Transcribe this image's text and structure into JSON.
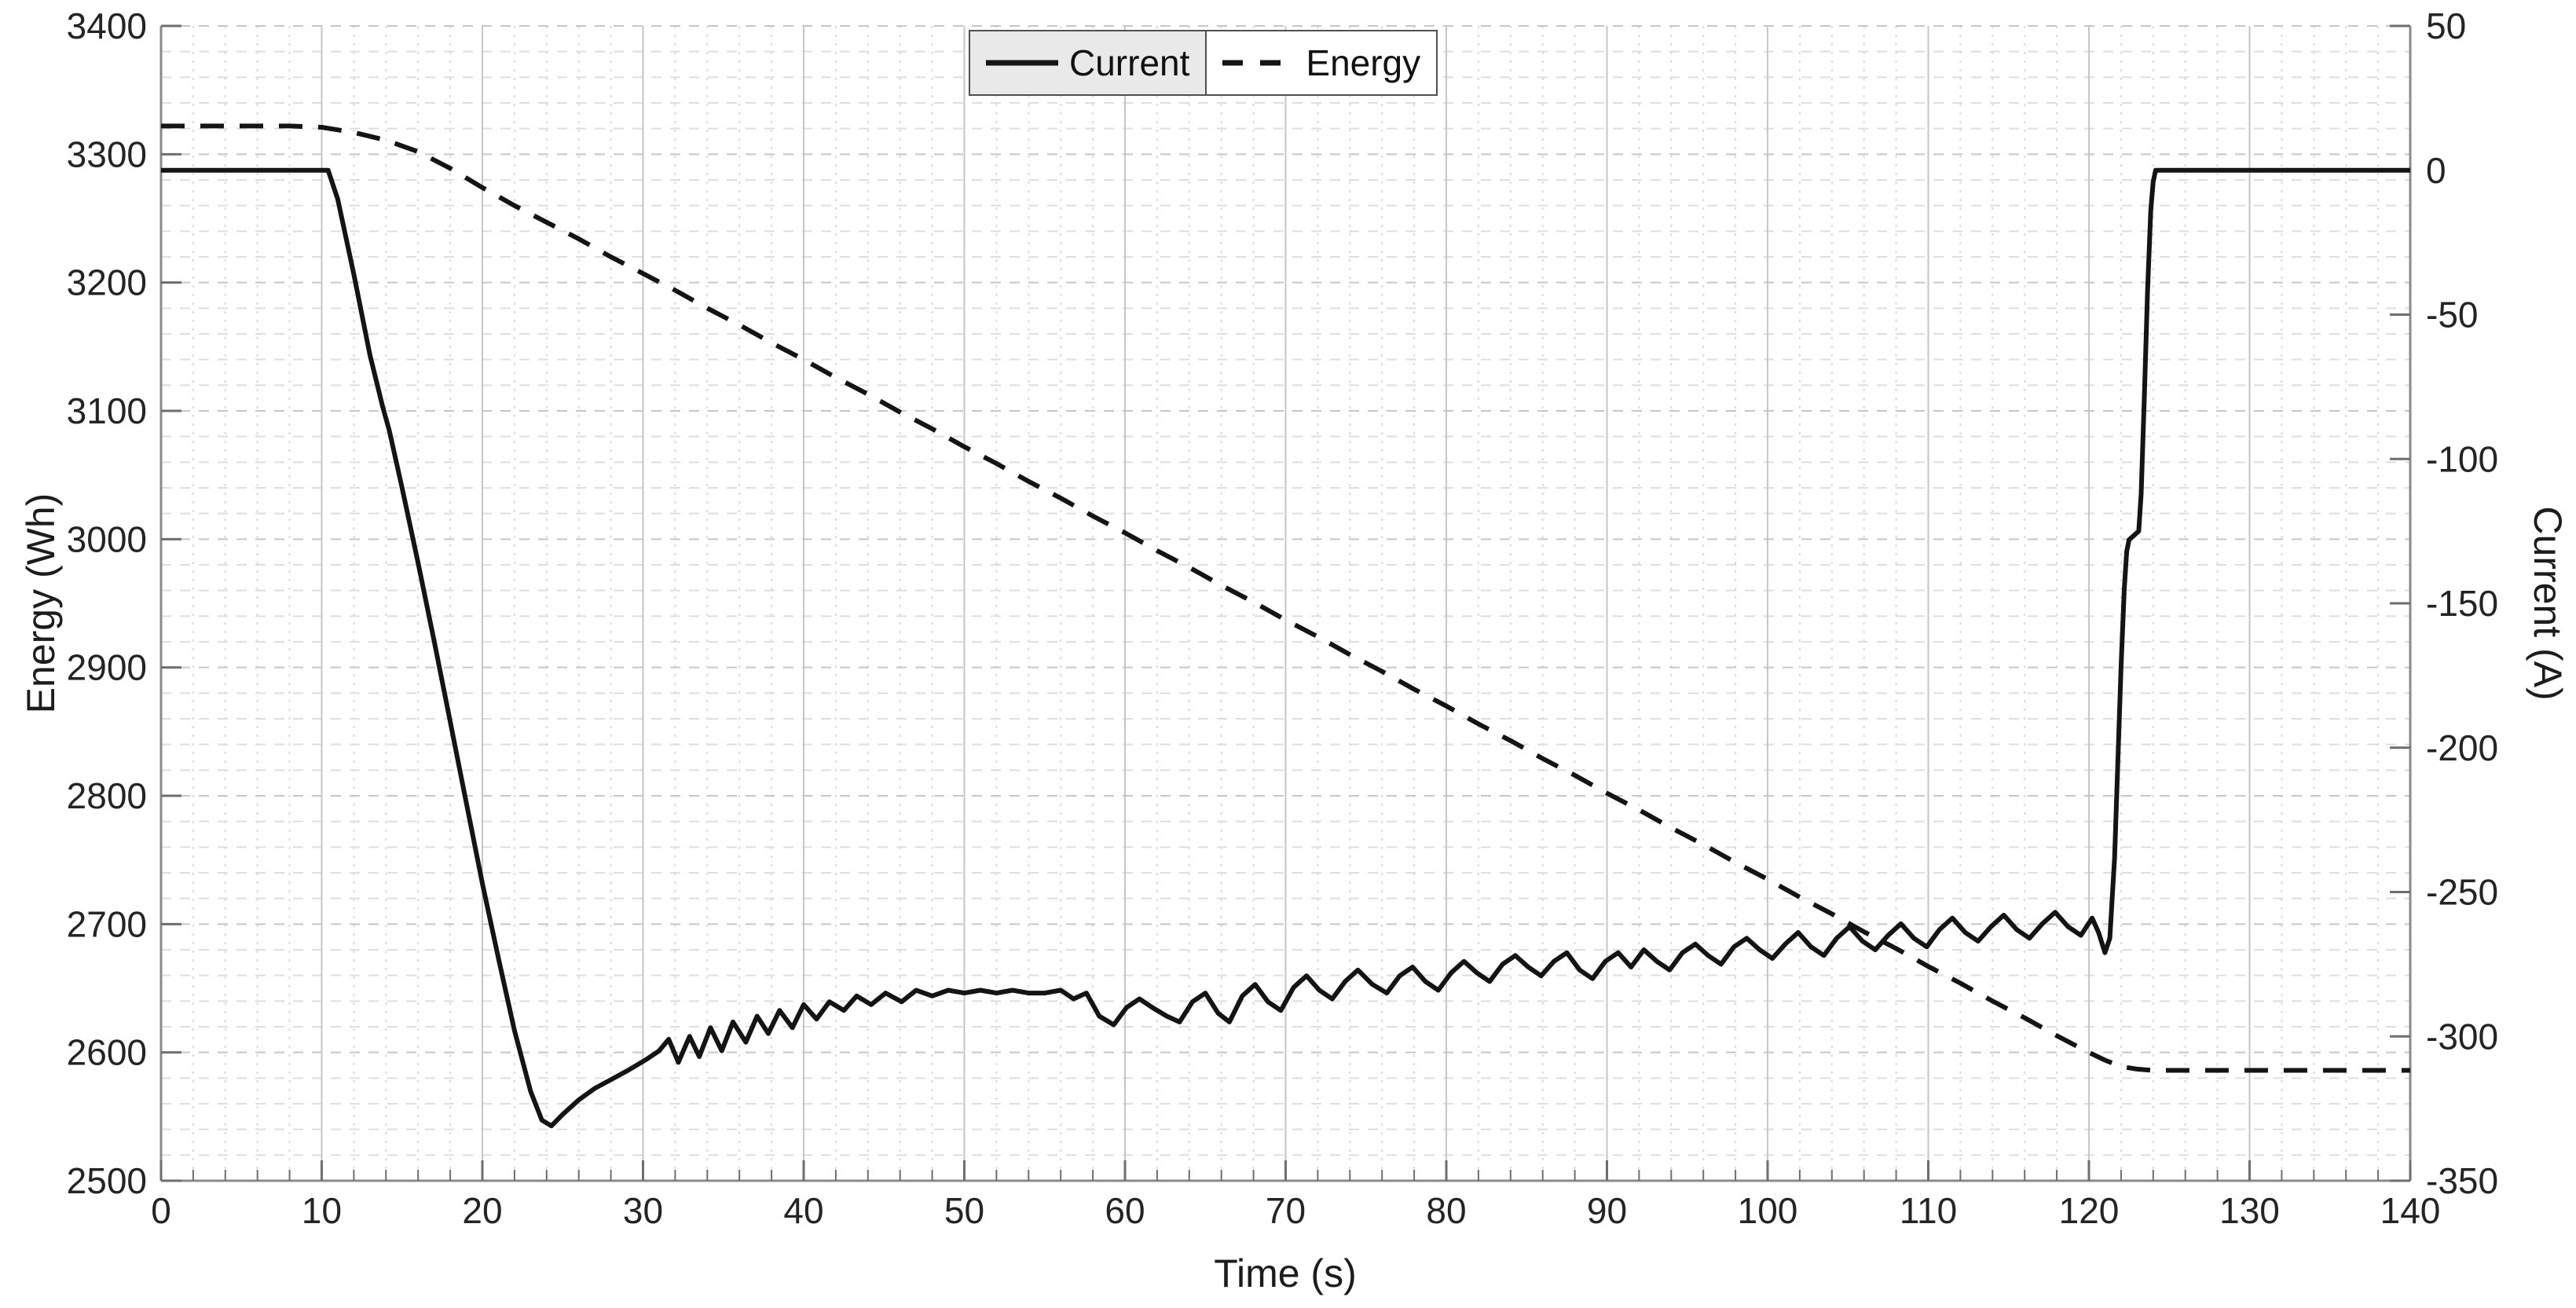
{
  "chart_data": {
    "type": "line",
    "title": "",
    "x_axis": {
      "label": "Time (s)",
      "min": 0,
      "max": 140,
      "major_tick_step": 10,
      "minor_step": 2,
      "ticks": [
        0,
        10,
        20,
        30,
        40,
        50,
        60,
        70,
        80,
        90,
        100,
        110,
        120,
        130,
        140
      ]
    },
    "y_left": {
      "label": "Energy (Wh)",
      "min": 2500,
      "max": 3400,
      "major_tick_step": 100,
      "minor_step": 20,
      "ticks": [
        2500,
        2600,
        2700,
        2800,
        2900,
        3000,
        3100,
        3200,
        3300,
        3400
      ]
    },
    "y_right": {
      "label": "Current (A)",
      "min": -350,
      "max": 50,
      "major_tick_step": 50,
      "ticks": [
        -350,
        -300,
        -250,
        -200,
        -150,
        -100,
        -50,
        0,
        50
      ]
    },
    "grid": true,
    "legend": {
      "position": "top-center",
      "entries": [
        {
          "label": "Current",
          "line_style": "solid"
        },
        {
          "label": "Energy",
          "line_style": "dashed"
        }
      ]
    },
    "colors": {
      "background": "#ffffff",
      "line": "#141414",
      "axis_line": "#8a8a8a",
      "tick": "#6e6e6e",
      "tick_label": "#242424",
      "grid_minor_v": "#dadada",
      "grid_minor_h": "#dedede",
      "grid_major": "#c6c6c6",
      "legend_border": "#4f4f4f",
      "legend_bg_current": "#e9e9e9",
      "legend_bg_energy": "#ffffff"
    },
    "series": [
      {
        "name": "Current",
        "axis": "right",
        "line_style": "solid",
        "unit": "A",
        "color": "#141414",
        "points": [
          [
            0,
            0
          ],
          [
            2,
            0
          ],
          [
            4,
            0
          ],
          [
            6,
            0
          ],
          [
            8,
            0
          ],
          [
            10,
            0
          ],
          [
            10.4,
            0
          ],
          [
            11,
            -10
          ],
          [
            12,
            -36
          ],
          [
            13,
            -64
          ],
          [
            13.8,
            -82
          ],
          [
            14.2,
            -90
          ],
          [
            15,
            -110
          ],
          [
            16,
            -136
          ],
          [
            17,
            -163
          ],
          [
            18,
            -191
          ],
          [
            19,
            -219
          ],
          [
            20,
            -247
          ],
          [
            21,
            -273
          ],
          [
            22,
            -298
          ],
          [
            23,
            -319
          ],
          [
            23.7,
            -329
          ],
          [
            24.3,
            -331
          ],
          [
            25,
            -327
          ],
          [
            26,
            -322
          ],
          [
            27,
            -318
          ],
          [
            28,
            -315
          ],
          [
            29,
            -312
          ],
          [
            30.2,
            -308
          ],
          [
            31,
            -305
          ],
          [
            31.6,
            -301
          ],
          [
            32.2,
            -309
          ],
          [
            32.9,
            -300
          ],
          [
            33.5,
            -307
          ],
          [
            34.2,
            -297
          ],
          [
            34.9,
            -305
          ],
          [
            35.6,
            -295
          ],
          [
            36.4,
            -302
          ],
          [
            37.1,
            -293
          ],
          [
            37.8,
            -299
          ],
          [
            38.5,
            -291
          ],
          [
            39.3,
            -297
          ],
          [
            40,
            -289
          ],
          [
            40.8,
            -294
          ],
          [
            41.6,
            -288
          ],
          [
            42.5,
            -291
          ],
          [
            43.3,
            -286
          ],
          [
            44.2,
            -289
          ],
          [
            45.1,
            -285
          ],
          [
            46.1,
            -288
          ],
          [
            47,
            -284
          ],
          [
            48,
            -286
          ],
          [
            49,
            -284
          ],
          [
            50,
            -285
          ],
          [
            51,
            -284
          ],
          [
            52,
            -285
          ],
          [
            53,
            -284
          ],
          [
            54,
            -285
          ],
          [
            55,
            -285
          ],
          [
            56,
            -284
          ],
          [
            56.8,
            -287
          ],
          [
            57.6,
            -285
          ],
          [
            58.4,
            -293
          ],
          [
            59.3,
            -296
          ],
          [
            60.1,
            -290
          ],
          [
            60.9,
            -287
          ],
          [
            61.7,
            -290
          ],
          [
            62.6,
            -293
          ],
          [
            63.4,
            -295
          ],
          [
            64.2,
            -288
          ],
          [
            65,
            -285
          ],
          [
            65.8,
            -292
          ],
          [
            66.5,
            -295
          ],
          [
            67.3,
            -286
          ],
          [
            68.1,
            -282
          ],
          [
            68.9,
            -288
          ],
          [
            69.7,
            -291
          ],
          [
            70.5,
            -283
          ],
          [
            71.3,
            -279
          ],
          [
            72.1,
            -284
          ],
          [
            72.9,
            -287
          ],
          [
            73.7,
            -281
          ],
          [
            74.5,
            -277
          ],
          [
            75.4,
            -282
          ],
          [
            76.3,
            -285
          ],
          [
            77.1,
            -279
          ],
          [
            77.9,
            -276
          ],
          [
            78.7,
            -281
          ],
          [
            79.5,
            -284
          ],
          [
            80.3,
            -278
          ],
          [
            81.1,
            -274
          ],
          [
            81.9,
            -278
          ],
          [
            82.7,
            -281
          ],
          [
            83.5,
            -275
          ],
          [
            84.3,
            -272
          ],
          [
            85.1,
            -276
          ],
          [
            85.9,
            -279
          ],
          [
            86.7,
            -274
          ],
          [
            87.5,
            -271
          ],
          [
            88.3,
            -277
          ],
          [
            89.1,
            -280
          ],
          [
            89.9,
            -274
          ],
          [
            90.7,
            -271
          ],
          [
            91.5,
            -276
          ],
          [
            92.3,
            -270
          ],
          [
            93.1,
            -274
          ],
          [
            93.9,
            -277
          ],
          [
            94.7,
            -271
          ],
          [
            95.5,
            -268
          ],
          [
            96.3,
            -272
          ],
          [
            97.1,
            -275
          ],
          [
            97.9,
            -269
          ],
          [
            98.7,
            -266
          ],
          [
            99.5,
            -270
          ],
          [
            100.3,
            -273
          ],
          [
            101.1,
            -268
          ],
          [
            101.9,
            -264
          ],
          [
            102.7,
            -269
          ],
          [
            103.5,
            -272
          ],
          [
            104.3,
            -266
          ],
          [
            105.1,
            -262
          ],
          [
            105.9,
            -267
          ],
          [
            106.7,
            -270
          ],
          [
            107.5,
            -265
          ],
          [
            108.3,
            -261
          ],
          [
            109.1,
            -266
          ],
          [
            109.9,
            -269
          ],
          [
            110.7,
            -263
          ],
          [
            111.5,
            -259
          ],
          [
            112.3,
            -264
          ],
          [
            113.1,
            -267
          ],
          [
            113.9,
            -262
          ],
          [
            114.7,
            -258
          ],
          [
            115.5,
            -263
          ],
          [
            116.3,
            -266
          ],
          [
            117.1,
            -261
          ],
          [
            117.9,
            -257
          ],
          [
            118.7,
            -262
          ],
          [
            119.5,
            -265
          ],
          [
            120.2,
            -259
          ],
          [
            120.6,
            -264
          ],
          [
            121,
            -271
          ],
          [
            121.3,
            -266
          ],
          [
            121.6,
            -238
          ],
          [
            121.8,
            -205
          ],
          [
            122,
            -172
          ],
          [
            122.2,
            -145
          ],
          [
            122.35,
            -132
          ],
          [
            122.5,
            -128
          ],
          [
            123.1,
            -125
          ],
          [
            123.25,
            -112
          ],
          [
            123.45,
            -78
          ],
          [
            123.65,
            -42
          ],
          [
            123.85,
            -14
          ],
          [
            124,
            -4
          ],
          [
            124.15,
            0
          ],
          [
            126,
            0
          ],
          [
            128,
            0
          ],
          [
            130,
            0
          ],
          [
            132,
            0
          ],
          [
            134,
            0
          ],
          [
            136,
            0
          ],
          [
            138,
            0
          ],
          [
            140,
            0
          ]
        ]
      },
      {
        "name": "Energy",
        "axis": "left",
        "line_style": "dashed",
        "unit": "Wh",
        "color": "#141414",
        "points": [
          [
            0,
            3322
          ],
          [
            2,
            3322
          ],
          [
            4,
            3322
          ],
          [
            6,
            3322
          ],
          [
            8,
            3322
          ],
          [
            10,
            3321
          ],
          [
            12,
            3317
          ],
          [
            14,
            3311
          ],
          [
            16,
            3302
          ],
          [
            18,
            3289
          ],
          [
            20,
            3274
          ],
          [
            22,
            3260
          ],
          [
            24,
            3247
          ],
          [
            26,
            3234
          ],
          [
            28,
            3220
          ],
          [
            30,
            3207
          ],
          [
            32,
            3194
          ],
          [
            34,
            3180
          ],
          [
            36,
            3167
          ],
          [
            38,
            3153
          ],
          [
            40,
            3140
          ],
          [
            42,
            3126
          ],
          [
            44,
            3113
          ],
          [
            46,
            3099
          ],
          [
            48,
            3086
          ],
          [
            50,
            3072
          ],
          [
            52,
            3059
          ],
          [
            54,
            3045
          ],
          [
            56,
            3032
          ],
          [
            58,
            3018
          ],
          [
            60,
            3005
          ],
          [
            62,
            2991
          ],
          [
            64,
            2978
          ],
          [
            66,
            2964
          ],
          [
            68,
            2951
          ],
          [
            70,
            2937
          ],
          [
            72,
            2924
          ],
          [
            74,
            2910
          ],
          [
            76,
            2897
          ],
          [
            78,
            2883
          ],
          [
            80,
            2870
          ],
          [
            82,
            2856
          ],
          [
            84,
            2843
          ],
          [
            86,
            2829
          ],
          [
            88,
            2816
          ],
          [
            90,
            2802
          ],
          [
            92,
            2789
          ],
          [
            94,
            2775
          ],
          [
            96,
            2762
          ],
          [
            98,
            2748
          ],
          [
            100,
            2735
          ],
          [
            102,
            2721
          ],
          [
            104,
            2708
          ],
          [
            106,
            2694
          ],
          [
            108,
            2681
          ],
          [
            110,
            2667
          ],
          [
            112,
            2654
          ],
          [
            114,
            2640
          ],
          [
            116,
            2627
          ],
          [
            118,
            2613
          ],
          [
            120,
            2600
          ],
          [
            121,
            2594
          ],
          [
            122,
            2589
          ],
          [
            123,
            2587
          ],
          [
            124,
            2586
          ],
          [
            126,
            2586
          ],
          [
            128,
            2586
          ],
          [
            130,
            2586
          ],
          [
            132,
            2586
          ],
          [
            134,
            2586
          ],
          [
            136,
            2586
          ],
          [
            138,
            2586
          ],
          [
            140,
            2586
          ]
        ]
      }
    ]
  }
}
